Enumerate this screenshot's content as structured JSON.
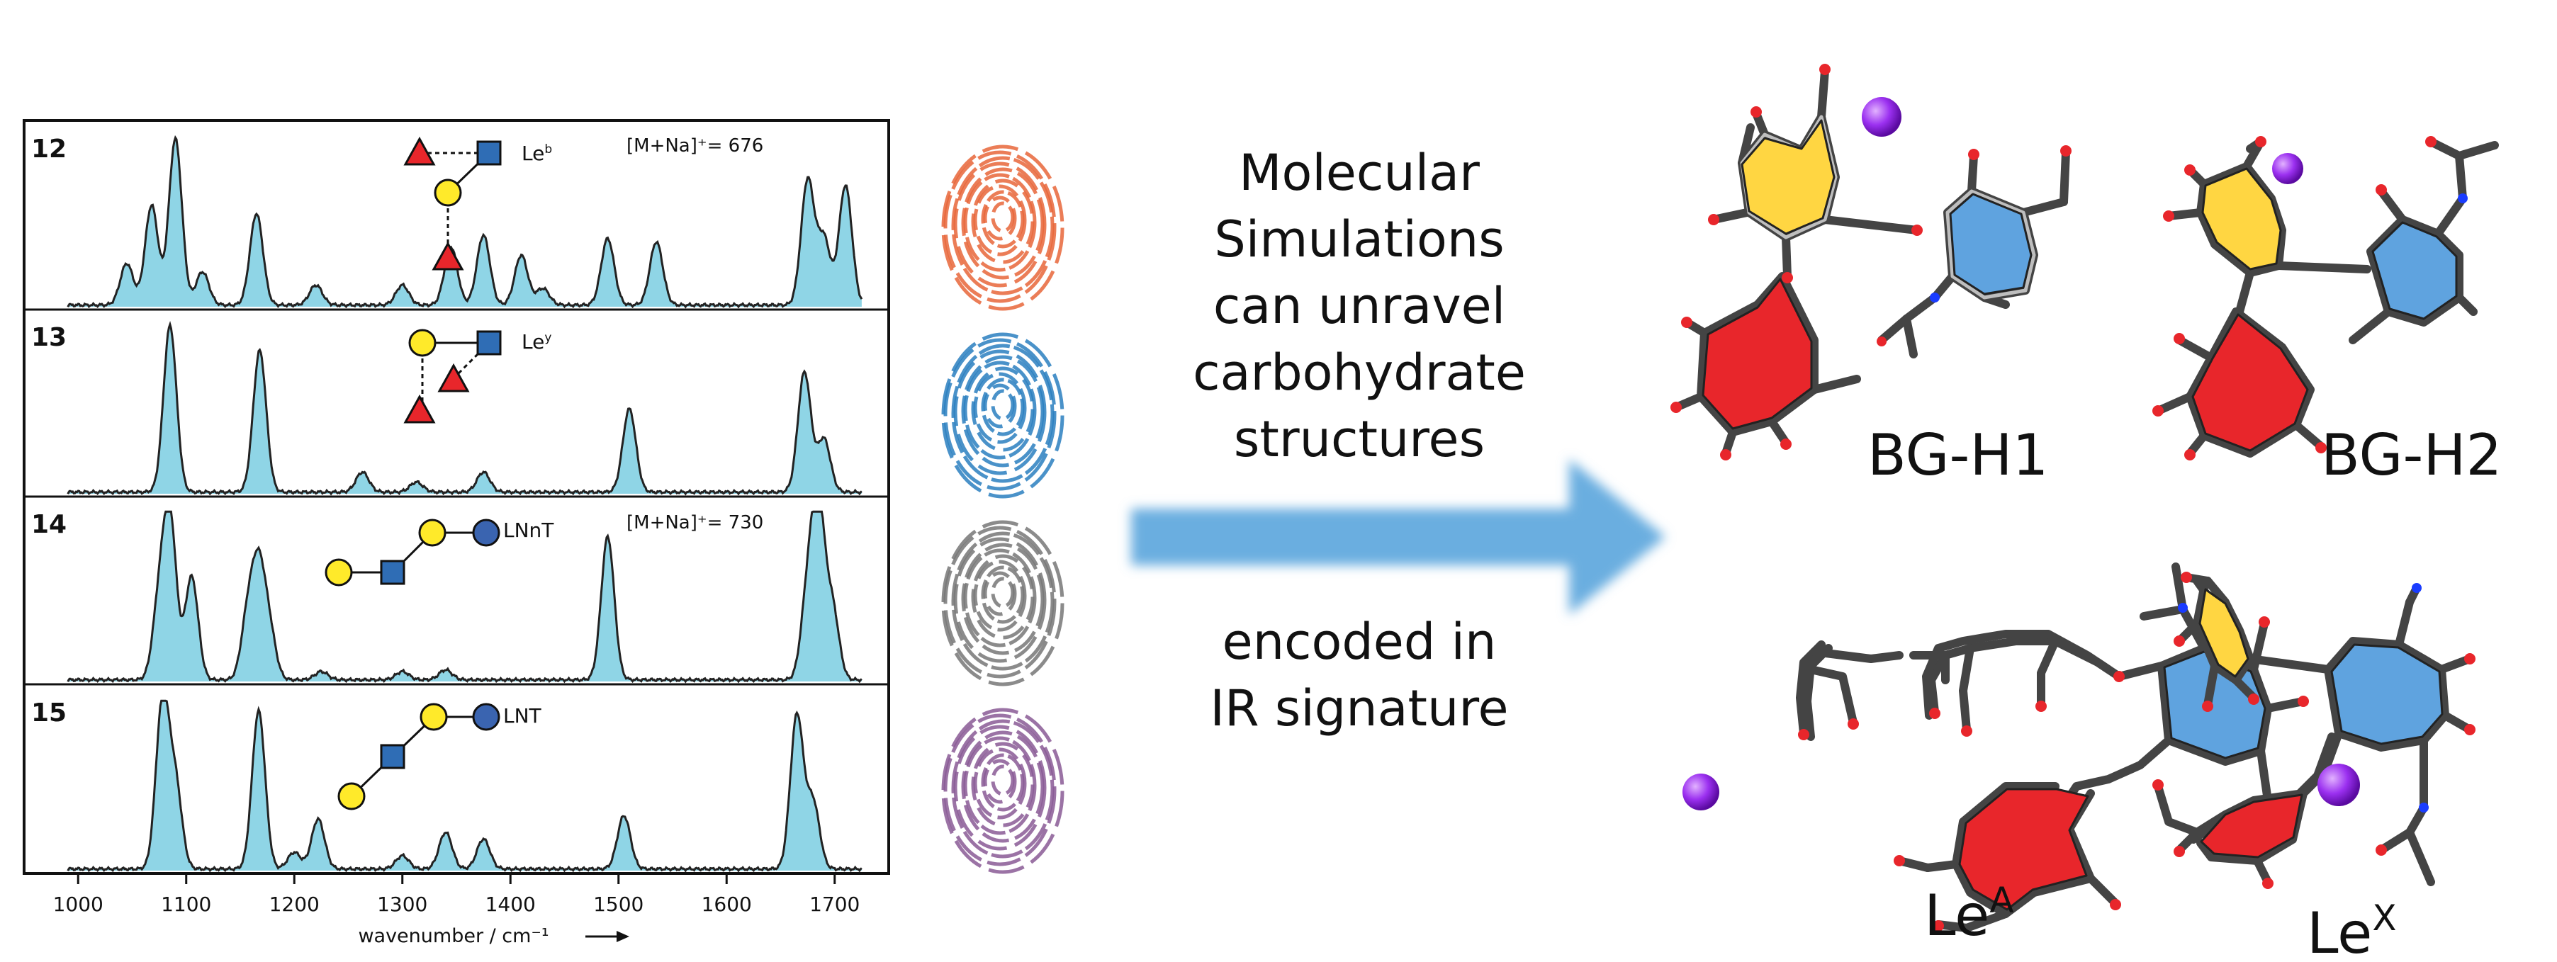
{
  "colors": {
    "spectrum_fill": "#8fd5e6",
    "spectrum_line": "#222222",
    "fucose_red": "#e8262b",
    "galactose_yellow": "#ffea2a",
    "glcnac_blue": "#2f6db5",
    "glucose_blue": "#3a64b0",
    "arrow_blue": "#6aaee0",
    "sodium_purple": "#8a2be2",
    "fingerprint_orange": "#e8663a",
    "fingerprint_blue": "#2a7fc0",
    "fingerprint_gray": "#777777",
    "fingerprint_purple": "#8a5a95"
  },
  "spectra": {
    "panels": [
      {
        "id": "12",
        "name": "Le",
        "sup": "b",
        "mass": "[M+Na]⁺= 676"
      },
      {
        "id": "13",
        "name": "Le",
        "sup": "y",
        "mass": ""
      },
      {
        "id": "14",
        "name": "LNnT",
        "sup": "",
        "mass": "[M+Na]⁺= 730"
      },
      {
        "id": "15",
        "name": "LNT",
        "sup": "",
        "mass": ""
      }
    ],
    "x_ticks": [
      "1000",
      "1100",
      "1200",
      "1300",
      "1400",
      "1500",
      "1600",
      "1700"
    ],
    "xlabel": "wavenumber / cm⁻¹"
  },
  "chart_data": {
    "type": "area",
    "xlabel": "wavenumber / cm⁻¹",
    "xlim": [
      950,
      1750
    ],
    "series": [
      {
        "name": "12",
        "peaks": [
          [
            1045,
            0.25
          ],
          [
            1068,
            0.6
          ],
          [
            1090,
            1.0
          ],
          [
            1115,
            0.2
          ],
          [
            1165,
            0.55
          ],
          [
            1220,
            0.12
          ],
          [
            1300,
            0.12
          ],
          [
            1345,
            0.35
          ],
          [
            1375,
            0.42
          ],
          [
            1410,
            0.3
          ],
          [
            1430,
            0.1
          ],
          [
            1490,
            0.4
          ],
          [
            1535,
            0.38
          ],
          [
            1675,
            0.75
          ],
          [
            1690,
            0.4
          ],
          [
            1710,
            0.72
          ]
        ]
      },
      {
        "name": "13",
        "peaks": [
          [
            1085,
            1.0
          ],
          [
            1168,
            0.85
          ],
          [
            1263,
            0.12
          ],
          [
            1313,
            0.06
          ],
          [
            1375,
            0.12
          ],
          [
            1510,
            0.5
          ],
          [
            1672,
            0.72
          ],
          [
            1690,
            0.32
          ]
        ]
      },
      {
        "name": "14",
        "peaks": [
          [
            1075,
            0.45
          ],
          [
            1085,
            0.95
          ],
          [
            1105,
            0.62
          ],
          [
            1157,
            0.38
          ],
          [
            1167,
            0.62
          ],
          [
            1177,
            0.28
          ],
          [
            1225,
            0.05
          ],
          [
            1300,
            0.05
          ],
          [
            1340,
            0.06
          ],
          [
            1490,
            0.86
          ],
          [
            1675,
            0.5
          ],
          [
            1685,
            1.0
          ],
          [
            1698,
            0.42
          ]
        ]
      },
      {
        "name": "15",
        "peaks": [
          [
            1078,
            1.0
          ],
          [
            1090,
            0.5
          ],
          [
            1167,
            0.95
          ],
          [
            1200,
            0.1
          ],
          [
            1222,
            0.3
          ],
          [
            1300,
            0.08
          ],
          [
            1340,
            0.22
          ],
          [
            1375,
            0.18
          ],
          [
            1505,
            0.32
          ],
          [
            1665,
            0.92
          ],
          [
            1680,
            0.4
          ]
        ]
      }
    ]
  },
  "arrow": {
    "upper_lines": [
      "Molecular",
      "Simulations",
      "can unravel",
      "carbohydrate",
      "structures"
    ],
    "lower_lines": [
      "encoded in",
      "IR signature"
    ]
  },
  "structures": {
    "bg_h1": "BG-H1",
    "bg_h2": "BG-H2",
    "le_a_base": "Le",
    "le_a_sup": "A",
    "le_x_base": "Le",
    "le_x_sup": "X"
  }
}
